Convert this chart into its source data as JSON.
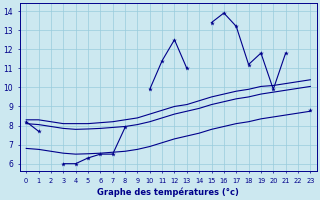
{
  "xlabel": "Graphe des températures (°c)",
  "bg_color": "#cce8f0",
  "line_color": "#00008b",
  "grid_color": "#99ccdd",
  "x": [
    0,
    1,
    2,
    3,
    4,
    5,
    6,
    7,
    8,
    9,
    10,
    11,
    12,
    13,
    14,
    15,
    16,
    17,
    18,
    19,
    20,
    21,
    22,
    23
  ],
  "temp": [
    8.2,
    7.7,
    null,
    6.0,
    6.0,
    6.3,
    6.5,
    6.5,
    7.9,
    null,
    9.9,
    11.4,
    12.5,
    11.0,
    null,
    13.4,
    13.9,
    13.2,
    11.2,
    11.8,
    9.9,
    11.8,
    null,
    8.8
  ],
  "line_top": [
    8.3,
    8.3,
    8.2,
    8.1,
    8.1,
    8.1,
    8.15,
    8.2,
    8.3,
    8.4,
    8.6,
    8.8,
    9.0,
    9.1,
    9.3,
    9.5,
    9.65,
    9.8,
    9.9,
    10.05,
    10.1,
    10.2,
    10.3,
    10.4
  ],
  "line_mid": [
    8.1,
    8.05,
    7.95,
    7.85,
    7.8,
    7.82,
    7.85,
    7.9,
    7.95,
    8.05,
    8.2,
    8.4,
    8.6,
    8.75,
    8.9,
    9.1,
    9.25,
    9.4,
    9.5,
    9.65,
    9.75,
    9.85,
    9.95,
    10.05
  ],
  "line_bot": [
    6.8,
    6.75,
    6.65,
    6.55,
    6.5,
    6.52,
    6.55,
    6.6,
    6.65,
    6.75,
    6.9,
    7.1,
    7.3,
    7.45,
    7.6,
    7.8,
    7.95,
    8.1,
    8.2,
    8.35,
    8.45,
    8.55,
    8.65,
    8.75
  ],
  "ylim": [
    5.6,
    14.4
  ],
  "yticks": [
    6,
    7,
    8,
    9,
    10,
    11,
    12,
    13,
    14
  ],
  "xlim": [
    -0.5,
    23.5
  ]
}
